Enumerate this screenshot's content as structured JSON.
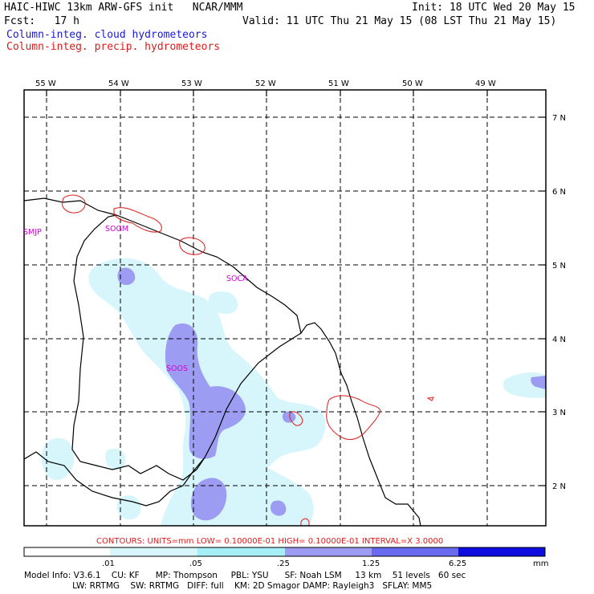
{
  "header": {
    "model_title": "HAIC-HIWC 13km ARW-GFS init   NCAR/MMM",
    "init": "Init: 18 UTC Wed 20 May 15",
    "fcst": "Fcst:   17 h",
    "valid": "Valid: 11 UTC Thu 21 May 15 (08 LST Thu 21 May 15)",
    "field_cloud": "Column-integ. cloud hydrometeors",
    "field_precip": "Column-integ. precip. hydrometeors"
  },
  "map": {
    "lon_labels": [
      "55 W",
      "54 W",
      "53 W",
      "52 W",
      "51 W",
      "50 W",
      "49 W"
    ],
    "lat_labels": [
      "7 N",
      "6 N",
      "5 N",
      "4 N",
      "3 N",
      "2 N"
    ],
    "stations": [
      "SMJP",
      "SOGM",
      "SOCA",
      "SOOS"
    ],
    "colors": {
      "cloud_light": "#d6f6fc",
      "cloud_medium": "#9c9cf2",
      "precip_contour": "#e01a1a",
      "station_label": "#d600d6",
      "grid": "#000000"
    }
  },
  "contour_info": "CONTOURS:  UNITS=mm  LOW= 0.10000E-01  HIGH= 0.10000E-01  INTERVAL=X  3.0000",
  "colorbar": {
    "levels": [
      ".01",
      ".05",
      ".25",
      "1.25",
      "6.25"
    ],
    "unit": "mm",
    "colors": [
      "#ffffff",
      "#d6f6fc",
      "#a6eef8",
      "#9c9cf2",
      "#6a6af0",
      "#3a3aee",
      "#0d0de0"
    ]
  },
  "footer": {
    "line1": "Model Info: V3.6.1    CU: KF      MP: Thompson     PBL: YSU      SF: Noah LSM     13 km    51 levels   60 sec",
    "line2": "                  LW: RRTMG    SW: RRTMG   DIFF: full    KM: 2D Smagor DAMP: Rayleigh3   SFLAY: MM5"
  }
}
